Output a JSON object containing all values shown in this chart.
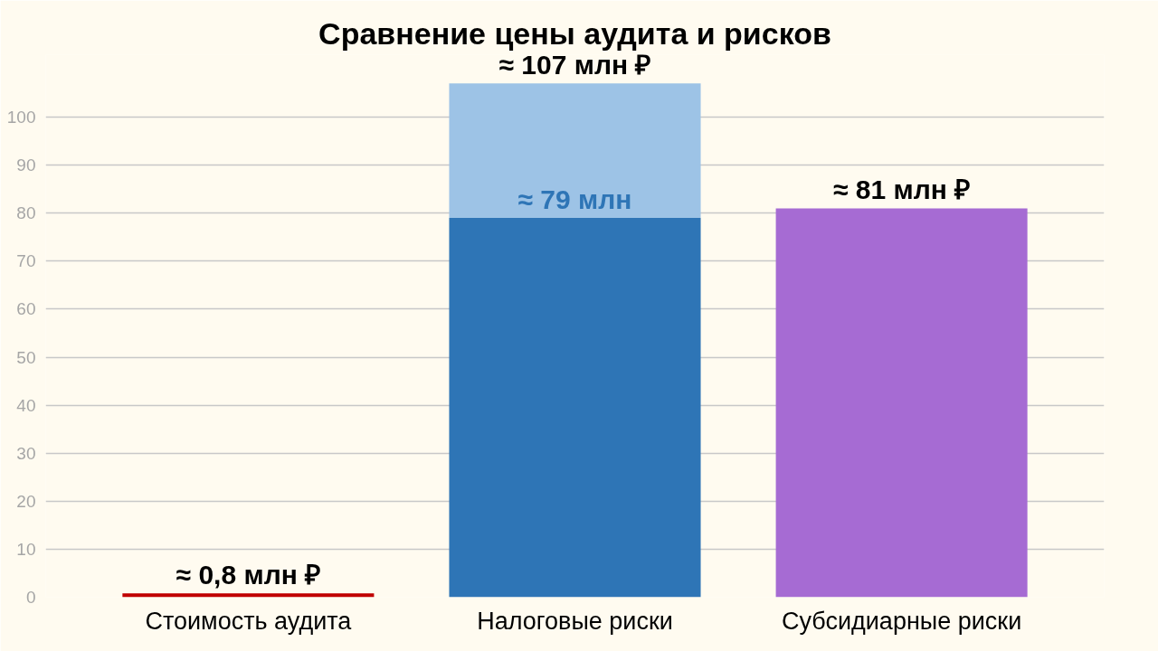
{
  "chart_data": {
    "type": "bar",
    "title": "Сравнение цены аудита и рисков",
    "categories": [
      "Стоимость аудита",
      "Налоговые риски",
      "Субсидиарные риски"
    ],
    "stacked": true,
    "series": [
      {
        "colors": [
          "#c00000",
          "#2e75b6",
          "#a66bd3"
        ],
        "values": [
          0.8,
          79,
          81
        ],
        "value_labels": [
          "≈ 0,8 млн ₽",
          "≈ 79 млн",
          "≈ 81 млн ₽"
        ]
      },
      {
        "color": "#9dc3e6",
        "values": [
          null,
          28,
          null
        ]
      }
    ],
    "totals": [
      null,
      "≈ 107 млн ₽",
      null
    ],
    "ylim": [
      0,
      113
    ],
    "yticks": [
      0,
      10,
      20,
      30,
      40,
      50,
      60,
      70,
      80,
      90,
      100
    ],
    "grid": "y"
  }
}
